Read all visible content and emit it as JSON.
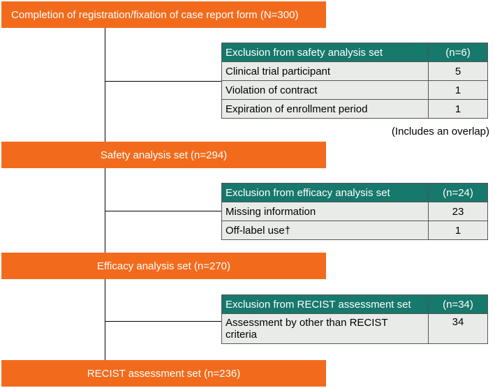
{
  "boxes": [
    "Completion of registration/fixation of case report form (N=300)",
    "Safety analysis set (n=294)",
    "Efficacy analysis set (n=270)",
    "RECIST assessment set (n=236)"
  ],
  "tables": [
    {
      "header": [
        "Exclusion from safety analysis set",
        "(n=6)"
      ],
      "rows": [
        [
          "Clinical trial participant",
          5
        ],
        [
          "Violation of contract",
          1
        ],
        [
          "Expiration of enrollment period",
          1
        ]
      ],
      "note": "(Includes an overlap)"
    },
    {
      "header": [
        "Exclusion from efficacy analysis set",
        "(n=24)"
      ],
      "rows": [
        [
          "Missing information",
          23
        ],
        [
          "Off-label use†",
          1
        ]
      ]
    },
    {
      "header": [
        "Exclusion from RECIST assessment set",
        "(n=34)"
      ],
      "rows": [
        [
          "Assessment by other than RECIST criteria",
          34
        ]
      ]
    }
  ]
}
